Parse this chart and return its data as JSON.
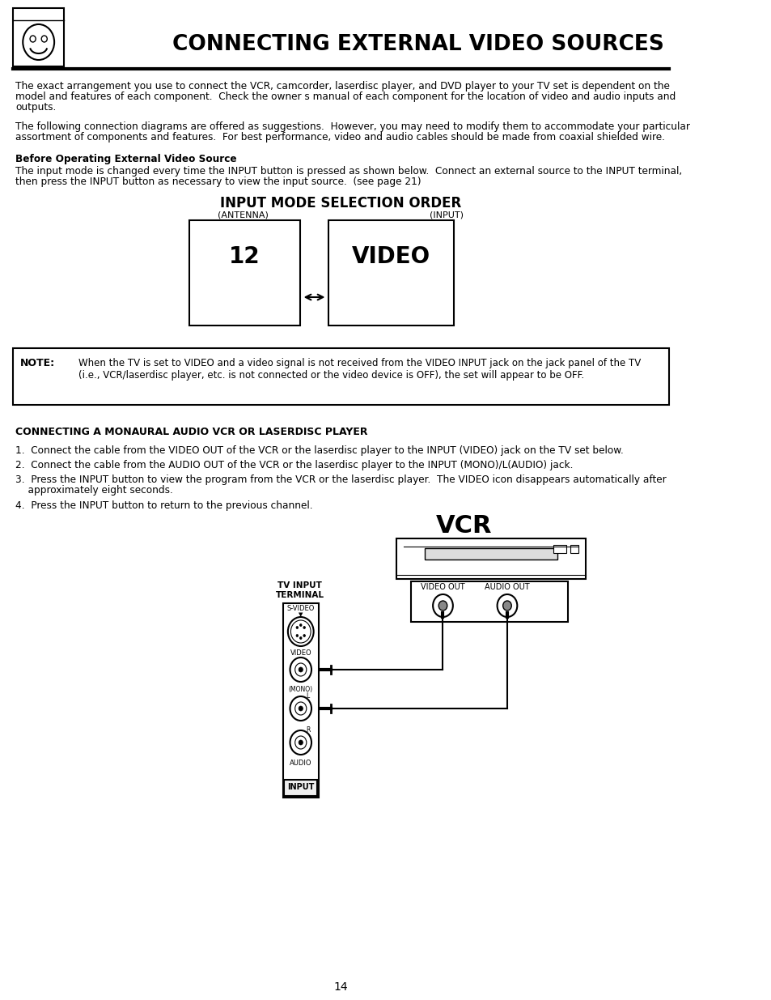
{
  "title": "CONNECTING EXTERNAL VIDEO SOURCES",
  "body_text_1a": "The exact arrangement you use to connect the VCR, camcorder, laserdisc player, and DVD player to your TV set is dependent on the",
  "body_text_1b": "model and features of each component.  Check the owner s manual of each component for the location of video and audio inputs and",
  "body_text_1c": "outputs.",
  "body_text_2a": "The following connection diagrams are offered as suggestions.  However, you may need to modify them to accommodate your particular",
  "body_text_2b": "assortment of components and features.  For best performance, video and audio cables should be made from coaxial shielded wire.",
  "bold_heading": "Before Operating External Video Source",
  "body_text_3a": "The input mode is changed every time the INPUT button is pressed as shown below.  Connect an external source to the INPUT terminal,",
  "body_text_3b": "then press the INPUT button as necessary to view the input source.  (see page 21)",
  "diagram_title": "INPUT MODE SELECTION ORDER",
  "antenna_label": "(ANTENNA)",
  "input_label": "(INPUT)",
  "box1_text": "12",
  "box2_text": "VIDEO",
  "note_label": "NOTE:",
  "note_text_line1": "When the TV is set to VIDEO and a video signal is not received from the VIDEO INPUT jack on the jack panel of the TV",
  "note_text_line2": "(i.e., VCR/laserdisc player, etc. is not connected or the video device is OFF), the set will appear to be OFF.",
  "connecting_heading": "CONNECTING A MONAURAL AUDIO VCR OR LASERDISC PLAYER",
  "step1": "1.  Connect the cable from the VIDEO OUT of the VCR or the laserdisc player to the INPUT (VIDEO) jack on the TV set below.",
  "step2": "2.  Connect the cable from the AUDIO OUT of the VCR or the laserdisc player to the INPUT (MONO)/L(AUDIO) jack.",
  "step3a": "3.  Press the INPUT button to view the program from the VCR or the laserdisc player.  The VIDEO icon disappears automatically after",
  "step3b": "    approximately eight seconds.",
  "step4": "4.  Press the INPUT button to return to the previous channel.",
  "vcr_label": "VCR",
  "tv_input_label_1": "TV INPUT",
  "tv_input_label_2": "TERMINAL",
  "svideo_label": "S-VIDEO",
  "video_label": "VIDEO",
  "mono_label": "(MONO)",
  "l_label": "L",
  "r_label": "R",
  "audio_label": "AUDIO",
  "input_btn_label": "INPUT",
  "video_out_label": "VIDEO OUT",
  "audio_out_label": "AUDIO OUT",
  "page_number": "14",
  "bg_color": "#ffffff",
  "text_color": "#000000"
}
